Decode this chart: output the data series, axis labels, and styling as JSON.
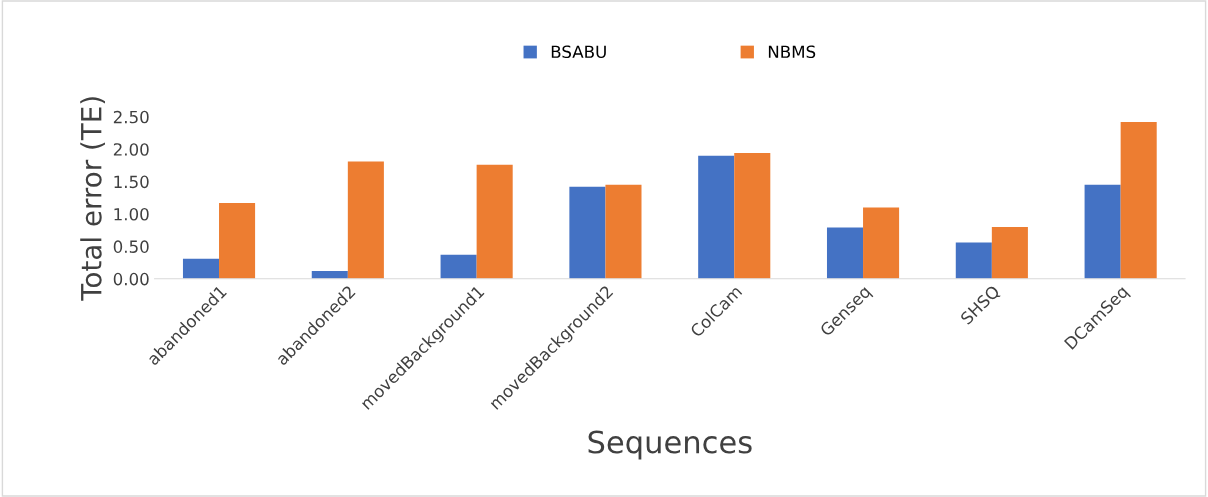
{
  "chart_data": {
    "type": "bar",
    "xlabel": "Sequences",
    "ylabel": "Total error (TE)",
    "categories": [
      "abandoned1",
      "abandoned2",
      "movedBackground1",
      "movedBackground2",
      "ColCam",
      "Genseq",
      "SHSQ",
      "DCamSeq"
    ],
    "series": [
      {
        "name": "BSABU",
        "color": "#4472c4",
        "values": [
          0.31,
          0.12,
          0.37,
          1.42,
          1.9,
          0.79,
          0.56,
          1.45
        ]
      },
      {
        "name": "NBMS",
        "color": "#ed7d31",
        "values": [
          1.17,
          1.81,
          1.76,
          1.45,
          1.94,
          1.1,
          0.8,
          2.42
        ]
      }
    ],
    "ylim": [
      0,
      2.5
    ],
    "yticks": [
      {
        "value": 0,
        "label": "0.00"
      },
      {
        "value": 0.5,
        "label": "0.50"
      },
      {
        "value": 1,
        "label": "1.00"
      },
      {
        "value": 1.5,
        "label": "1.50"
      },
      {
        "value": 2,
        "label": "2.00"
      },
      {
        "value": 2.5,
        "label": "2.50"
      }
    ],
    "grid": false,
    "legend": "top"
  }
}
